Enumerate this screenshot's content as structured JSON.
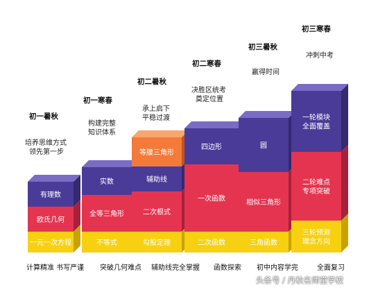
{
  "colors": {
    "purple_front": "#4a3b98",
    "purple_top": "#7a6cc4",
    "purple_side": "#35296f",
    "red_front": "#e53450",
    "red_side": "#a8203a",
    "yellow_front": "#f7d012",
    "yellow_side": "#c9a200",
    "orange_front": "#f47a3a",
    "orange_top": "#f8a66d",
    "orange_side": "#c25420"
  },
  "stages": [
    {
      "title": "初一暑秋",
      "desc": [
        "培养思维方式",
        "领先第一步"
      ],
      "blocks": [
        "有理数",
        "欧氏几何",
        "一元一次方程"
      ],
      "footer": "计算精准 书写严谨"
    },
    {
      "title": "初一寒春",
      "desc": [
        "构建完整",
        "知识体系"
      ],
      "blocks": [
        "实数",
        "全等三角形",
        "不等式"
      ],
      "footer": "突破几何难点"
    },
    {
      "title": "初二暑秋",
      "desc": [
        "承上启下",
        "平稳过渡"
      ],
      "blocks": [
        "等腰三角形",
        "辅助线",
        "二次根式",
        "勾股定理"
      ],
      "footer": "辅助线完全掌握"
    },
    {
      "title": "初二寒春",
      "desc": [
        "决胜区统考",
        "奠定位置"
      ],
      "blocks": [
        "四边形",
        "一次函数",
        "二次函数"
      ],
      "footer": "函数探索"
    },
    {
      "title": "初三暑秋",
      "desc": [
        "赢得时间"
      ],
      "blocks": [
        "圆",
        "相似三角形",
        "三角函数"
      ],
      "footer": "初中内容学完"
    },
    {
      "title": "初三寒春",
      "desc": [
        "冲刺中考"
      ],
      "blocks": [
        [
          "一轮模块",
          "全面覆盖"
        ],
        [
          "二轮难点",
          "专项突破"
        ],
        [
          "三轮预测",
          "理念方向"
        ]
      ],
      "footer": "全面复习"
    }
  ],
  "watermark": "头条号 / 丹秋名师堂学校"
}
